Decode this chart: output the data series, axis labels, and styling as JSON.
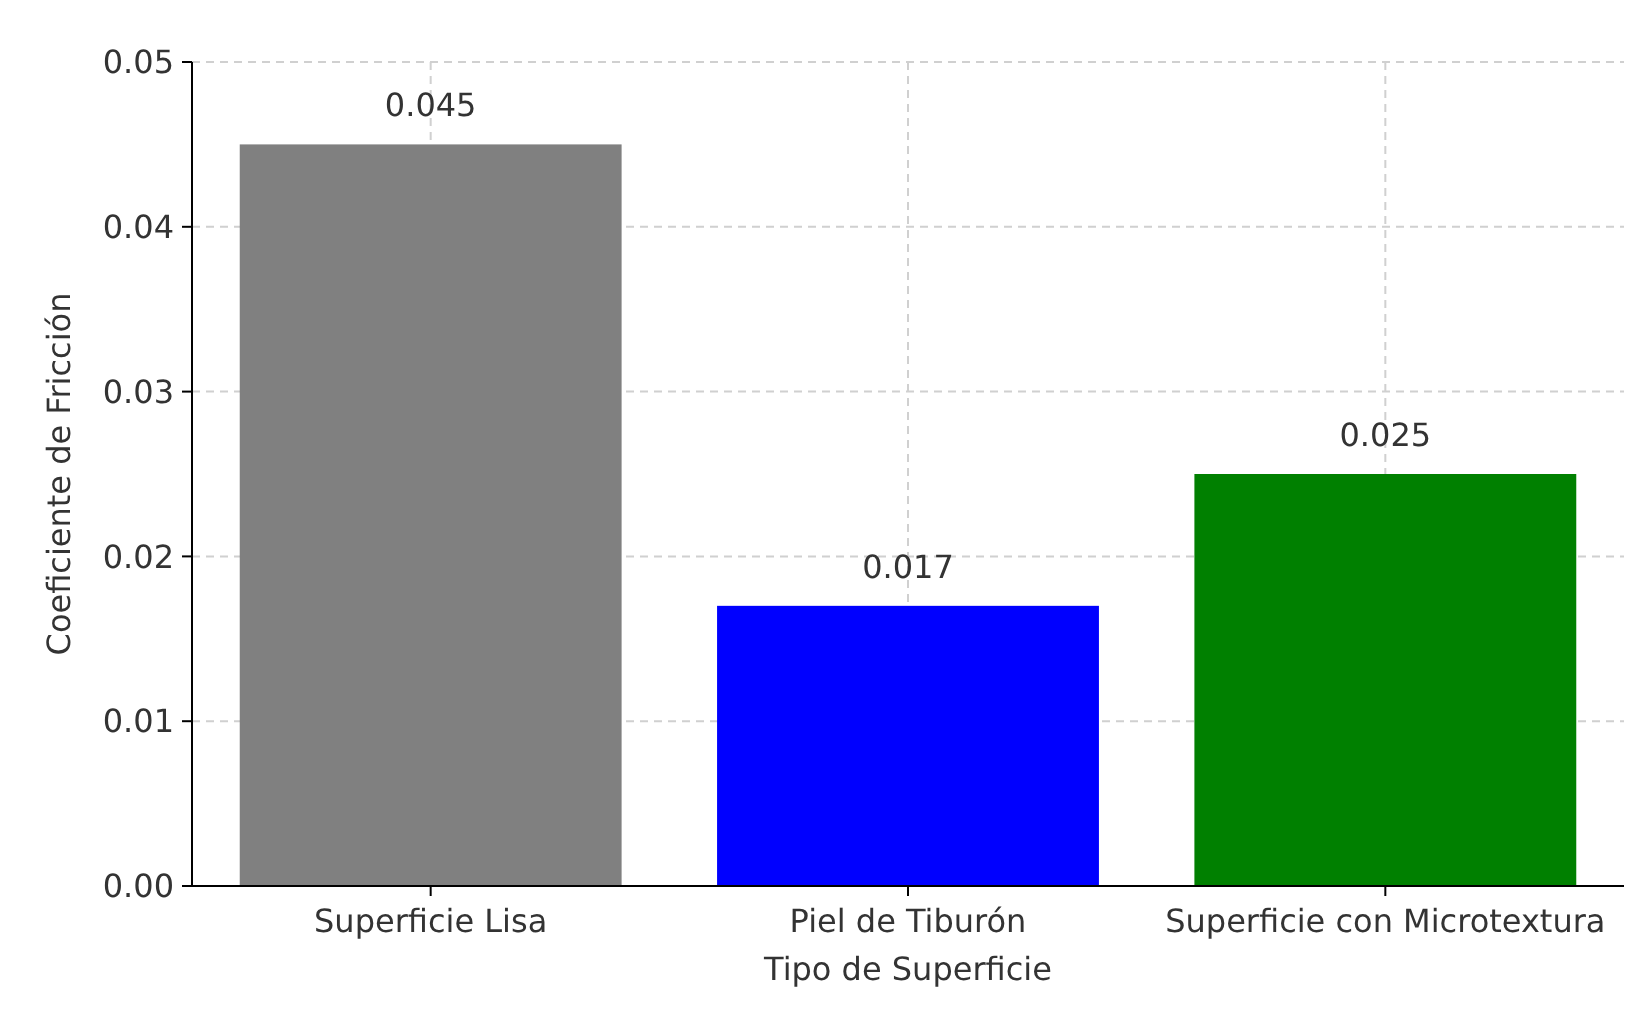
{
  "chart_data": {
    "type": "bar",
    "xlabel": "Tipo de Superficie",
    "ylabel": "Coeficiente de Fricción",
    "categories": [
      "Superficie Lisa",
      "Piel de Tiburón",
      "Superficie con Microtextura"
    ],
    "values": [
      0.045,
      0.017,
      0.025
    ],
    "colors": [
      "#808080",
      "#0000ff",
      "#008000"
    ],
    "ylim": [
      0,
      0.05
    ],
    "yticks": [
      {
        "value": 0,
        "label": "0.00"
      },
      {
        "value": 0.01,
        "label": "0.01"
      },
      {
        "value": 0.02,
        "label": "0.02"
      },
      {
        "value": 0.03,
        "label": "0.03"
      },
      {
        "value": 0.04,
        "label": "0.04"
      },
      {
        "value": 0.05,
        "label": "0.05"
      }
    ],
    "grid": true,
    "data_labels": true
  }
}
